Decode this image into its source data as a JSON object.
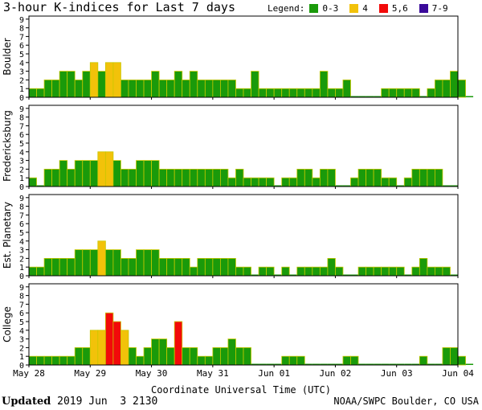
{
  "title": "3-hour K-indices for Last 7 days",
  "legend": {
    "label": "Legend:",
    "items": [
      {
        "label": "0-3",
        "color": "#1a9a0a"
      },
      {
        "label": "4",
        "color": "#f2c20a"
      },
      {
        "label": "5,6",
        "color": "#f20a0a"
      },
      {
        "label": "7-9",
        "color": "#3a0a9a"
      }
    ]
  },
  "footer": {
    "updated_label": "Updated",
    "updated_value": " 2019 Jun  3 2130",
    "credit": "NOAA/SWPC Boulder, CO USA"
  },
  "chart_data": {
    "type": "bar",
    "title": "3-hour K-indices for Last 7 days",
    "xlabel": "Coordinate Universal Time (UTC)",
    "x_ticks": [
      "May 28",
      "May 29",
      "May 30",
      "May 31",
      "Jun 01",
      "Jun 02",
      "Jun 03",
      "Jun 04"
    ],
    "ylim": [
      0,
      9
    ],
    "y_ticks": [
      0,
      1,
      2,
      3,
      4,
      5,
      6,
      7,
      8,
      9
    ],
    "grid": false,
    "bins_per_day": 8,
    "color_scale": {
      "0-3": "#1a9a0a",
      "4": "#f2c20a",
      "5,6": "#f20a0a",
      "7-9": "#3a0a9a"
    },
    "series": [
      {
        "name": "Boulder",
        "values": [
          1,
          1,
          2,
          2,
          3,
          3,
          2,
          3,
          4,
          3,
          4,
          4,
          2,
          2,
          2,
          2,
          3,
          2,
          2,
          3,
          2,
          3,
          2,
          2,
          2,
          2,
          2,
          1,
          1,
          3,
          1,
          1,
          1,
          1,
          1,
          1,
          1,
          1,
          3,
          1,
          1,
          2,
          0,
          0,
          0,
          0,
          1,
          1,
          1,
          1,
          1,
          0,
          1,
          2,
          2,
          3,
          2,
          0
        ]
      },
      {
        "name": "Fredericksburg",
        "values": [
          1,
          0,
          2,
          2,
          3,
          2,
          3,
          3,
          3,
          4,
          4,
          3,
          2,
          2,
          3,
          3,
          3,
          2,
          2,
          2,
          2,
          2,
          2,
          2,
          2,
          2,
          1,
          2,
          1,
          1,
          1,
          1,
          0,
          1,
          1,
          2,
          2,
          1,
          2,
          2,
          0,
          0,
          1,
          2,
          2,
          2,
          1,
          1,
          0,
          1,
          2,
          2,
          2,
          2,
          0,
          0
        ]
      },
      {
        "name": "Est. Planetary",
        "values": [
          1,
          1,
          2,
          2,
          2,
          2,
          3,
          3,
          3,
          4,
          3,
          3,
          2,
          2,
          3,
          3,
          3,
          2,
          2,
          2,
          2,
          1,
          2,
          2,
          2,
          2,
          2,
          1,
          1,
          0,
          1,
          1,
          0,
          1,
          0,
          1,
          1,
          1,
          1,
          2,
          1,
          0,
          0,
          1,
          1,
          1,
          1,
          1,
          1,
          0,
          1,
          2,
          1,
          1,
          1,
          0
        ]
      },
      {
        "name": "College",
        "values": [
          1,
          1,
          1,
          1,
          1,
          1,
          2,
          2,
          4,
          4,
          6,
          5,
          4,
          2,
          1,
          2,
          3,
          3,
          2,
          5,
          2,
          2,
          1,
          1,
          2,
          2,
          3,
          2,
          2,
          0,
          0,
          0,
          0,
          1,
          1,
          1,
          0,
          0,
          0,
          0,
          0,
          1,
          1,
          0,
          0,
          0,
          0,
          0,
          0,
          0,
          0,
          1,
          0,
          0,
          2,
          2,
          1,
          0
        ]
      }
    ]
  }
}
